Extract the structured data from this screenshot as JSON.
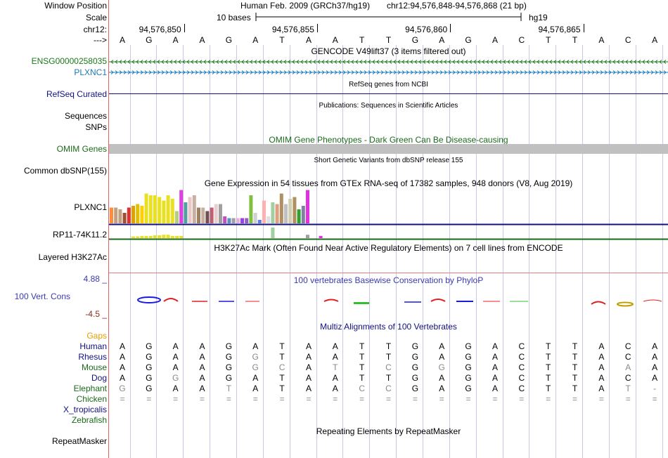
{
  "header": {
    "window_position_label": "Window Position",
    "assembly": "Human Feb. 2009 (GRCh37/hg19)",
    "position": "chr12:94,576,848-94,576,868 (21 bp)",
    "scale_label": "Scale",
    "scale_bar_text": "10 bases",
    "scale_db": "hg19",
    "chrom_label": "chr12:",
    "coords": [
      "94,576,850",
      "94,576,855",
      "94,576,860",
      "94,576,865"
    ],
    "strand_arrow": "--->",
    "bases": [
      "A",
      "G",
      "A",
      "A",
      "G",
      "A",
      "T",
      "A",
      "A",
      "T",
      "T",
      "G",
      "A",
      "G",
      "A",
      "C",
      "T",
      "T",
      "A",
      "C",
      "A"
    ]
  },
  "tracks": {
    "gencode_title": "GENCODE V49lift37 (3 items filtered out)",
    "gencode_items": [
      {
        "name": "ENSG00000258035",
        "color": "#1a7a1a"
      },
      {
        "name": "PLXNC1",
        "color": "#1c7ab8"
      }
    ],
    "refseq_label": "RefSeq Curated",
    "refseq_title": "RefSeq genes from NCBI",
    "pubs_title": "Publications: Sequences in Scientific Articles",
    "sequences_label": "Sequences",
    "snps_label": "SNPs",
    "omim_title": "OMIM Gene Phenotypes - Dark Green Can Be Disease-causing",
    "omim_label": "OMIM Genes",
    "dbsnp_title": "Short Genetic Variants from dbSNP release 155",
    "dbsnp_label": "Common dbSNP(155)",
    "gtex_title": "Gene Expression in 54 tissues from GTEx RNA-seq of 17382 samples, 948 donors (V8, Aug 2019)",
    "gtex_gene1": "PLXNC1",
    "gtex_gene2": "RP11-74K11.2",
    "h3k27_title": "H3K27Ac Mark (Often Found Near Active Regulatory Elements) on 7 cell lines from ENCODE",
    "h3k27_label": "Layered H3K27Ac",
    "phylop_title": "100 vertebrates Basewise Conservation by PhyloP",
    "phylop_label": "100 Vert. Cons",
    "phylop_max": "4.88 _",
    "phylop_min": "-4.5 _",
    "multiz_title": "Multiz Alignments of 100 Vertebrates",
    "gaps_label": "Gaps",
    "species": [
      {
        "name": "Human",
        "color": "#101080",
        "seq": [
          "A",
          "G",
          "A",
          "A",
          "G",
          "A",
          "T",
          "A",
          "A",
          "T",
          "T",
          "G",
          "A",
          "G",
          "A",
          "C",
          "T",
          "T",
          "A",
          "C",
          "A"
        ]
      },
      {
        "name": "Rhesus",
        "color": "#101080",
        "seq": [
          "A",
          "G",
          "A",
          "A",
          "G",
          "G",
          "T",
          "A",
          "A",
          "T",
          "T",
          "G",
          "A",
          "G",
          "A",
          "C",
          "T",
          "T",
          "A",
          "C",
          "A"
        ]
      },
      {
        "name": "Mouse",
        "color": "#1a6a1a",
        "seq": [
          "A",
          "G",
          "A",
          "A",
          "G",
          "G",
          "C",
          "A",
          "T",
          "T",
          "C",
          "G",
          "G",
          "G",
          "A",
          "C",
          "T",
          "T",
          "A",
          "A",
          "A"
        ]
      },
      {
        "name": "Dog",
        "color": "#101080",
        "seq": [
          "A",
          "G",
          "G",
          "A",
          "G",
          "A",
          "T",
          "A",
          "A",
          "T",
          "T",
          "G",
          "A",
          "G",
          "A",
          "C",
          "T",
          "T",
          "A",
          "C",
          "A"
        ]
      },
      {
        "name": "Elephant",
        "color": "#1a6a1a",
        "seq": [
          "G",
          "G",
          "A",
          "A",
          "T",
          "A",
          "T",
          "A",
          "A",
          "C",
          "C",
          "G",
          "A",
          "G",
          "A",
          "C",
          "T",
          "T",
          "A",
          "T",
          "-"
        ]
      },
      {
        "name": "Chicken",
        "color": "#1a6a1a",
        "seq": [
          "=",
          "=",
          "=",
          "=",
          "=",
          "=",
          "=",
          "=",
          "=",
          "=",
          "=",
          "=",
          "=",
          "=",
          "=",
          "=",
          "=",
          "=",
          "=",
          "=",
          "="
        ]
      },
      {
        "name": "X_tropicalis",
        "color": "#101080",
        "seq": []
      },
      {
        "name": "Zebrafish",
        "color": "#1a6a1a",
        "seq": []
      }
    ],
    "repeat_title": "Repeating Elements by RepeatMasker",
    "repeat_label": "RepeatMasker",
    "gtex_values1": [
      0.45,
      0.45,
      0.4,
      0.3,
      0.45,
      0.5,
      0.55,
      0.5,
      0.85,
      0.8,
      0.8,
      0.75,
      0.65,
      0.8,
      0.7,
      0.35,
      0.95,
      0.6,
      0.75,
      0.8,
      0.45,
      0.45,
      0.35,
      0.45,
      0.55,
      0.55,
      0.2,
      0.15,
      0.15,
      0.15,
      0.15,
      0.15,
      0.8,
      0.3,
      0.1,
      0.65,
      0.2,
      0.6,
      0.55,
      0.85,
      0.55,
      0.7,
      0.75,
      0.4,
      0.5,
      0.95
    ],
    "gtex_colors1": [
      "#ff8c3a",
      "#c0a080",
      "#c0a080",
      "#a05030",
      "#e03030",
      "#e0a000",
      "#e0c000",
      "#ffd000",
      "#e8e020",
      "#e8e020",
      "#e8e020",
      "#e8e020",
      "#e8e020",
      "#e8e020",
      "#e8e020",
      "#b0d080",
      "#e040e0",
      "#50a0a0",
      "#e8c8c8",
      "#c8b0a0",
      "#a08060",
      "#c8b0a0",
      "#705050",
      "#c06070",
      "#e8d0d0",
      "#a0a0a0",
      "#c050c0",
      "#6090c0",
      "#a0a0a0",
      "#e0b0e0",
      "#a040e0",
      "#9060c0",
      "#80c040",
      "#d0d0d0",
      "#6080e0",
      "#ffb0b0",
      "#e0e0e0",
      "#a0d0a0",
      "#e0a080",
      "#b09060",
      "#c0c0c0",
      "#d0d0b0",
      "#b09060",
      "#30a030",
      "#8080a0",
      "#e030e0"
    ],
    "gtex_values2": [
      0,
      0,
      0,
      0,
      0,
      0.15,
      0.15,
      0.2,
      0.2,
      0.2,
      0.25,
      0.25,
      0.3,
      0.3,
      0.2,
      0.2,
      0.2,
      0,
      0,
      0,
      0,
      0,
      0,
      0,
      0,
      0,
      0,
      0,
      0,
      0,
      0,
      0,
      0,
      0,
      0,
      0,
      0,
      0.95,
      0,
      0,
      0,
      0,
      0,
      0,
      0,
      0.3,
      0,
      0,
      0.2
    ],
    "gtex_colors2": [
      "#e8e020",
      "#e8e020",
      "#e8e020",
      "#e8e020",
      "#e8e020",
      "#e8e020",
      "#e8e020",
      "#e8e020",
      "#e8e020",
      "#e8e020",
      "#e8e020",
      "#e8e020",
      "#e8e020",
      "#e8e020",
      "#e8e020",
      "#e8e020",
      "#e8e020",
      "#e8e020",
      "#e8e020",
      "#e8e020",
      "#e8e020",
      "#e8e020",
      "#e8e020",
      "#e8e020",
      "#e8e020",
      "#e8e020",
      "#e8e020",
      "#e8e020",
      "#e8e020",
      "#e8e020",
      "#e8e020",
      "#e8e020",
      "#e8e020",
      "#e8e020",
      "#e8e020",
      "#e8e020",
      "#e8e020",
      "#a0d0a0",
      "#e8e020",
      "#e8e020",
      "#e8e020",
      "#e8e020",
      "#e8e020",
      "#e8e020",
      "#e8e020",
      "#a0a0a0",
      "#e8e020",
      "#e8e020",
      "#e030e0"
    ]
  },
  "colors": {
    "grid_line": "#c8c8e8",
    "omim_bar": "#c0c0c0",
    "refseq_line": "#101080",
    "gtex_axis": "#101080",
    "gtex_axis2": "#1a6a1a",
    "phylop_title_color": "#3a3ab0",
    "gaps_color": "#e0a000"
  }
}
